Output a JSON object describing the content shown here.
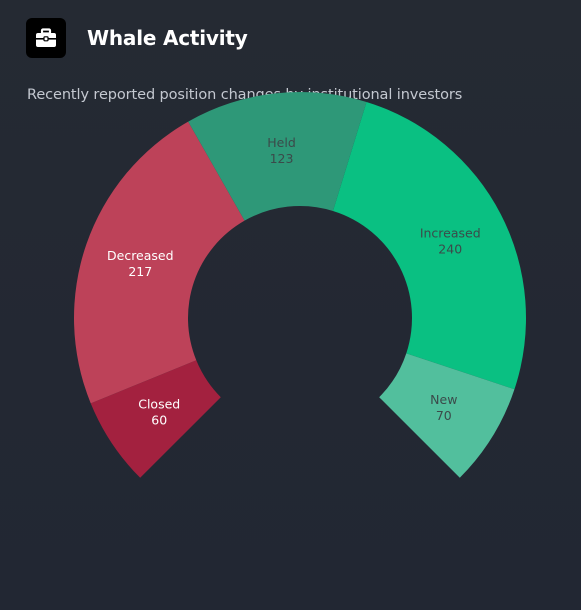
{
  "header": {
    "title": "Whale Activity",
    "icon": "briefcase-icon",
    "subtitle": "Recently reported position changes by institutional investors"
  },
  "chart_data": {
    "type": "pie",
    "variant": "partial-donut",
    "title": "Whale Activity",
    "subtitle": "Recently reported position changes by institutional investors",
    "slices": [
      {
        "label": "Closed",
        "value": 60,
        "color": "#a3213f",
        "text_color": "#ffffff"
      },
      {
        "label": "Decreased",
        "value": 217,
        "color": "#bd4259",
        "text_color": "#ffffff"
      },
      {
        "label": "Held",
        "value": 123,
        "color": "#2e9878",
        "text_color": "#3b4a4a"
      },
      {
        "label": "Increased",
        "value": 240,
        "color": "#0ac082",
        "text_color": "#3b4a4a"
      },
      {
        "label": "New",
        "value": 70,
        "color": "#52bf9d",
        "text_color": "#3b4a4a"
      }
    ]
  }
}
